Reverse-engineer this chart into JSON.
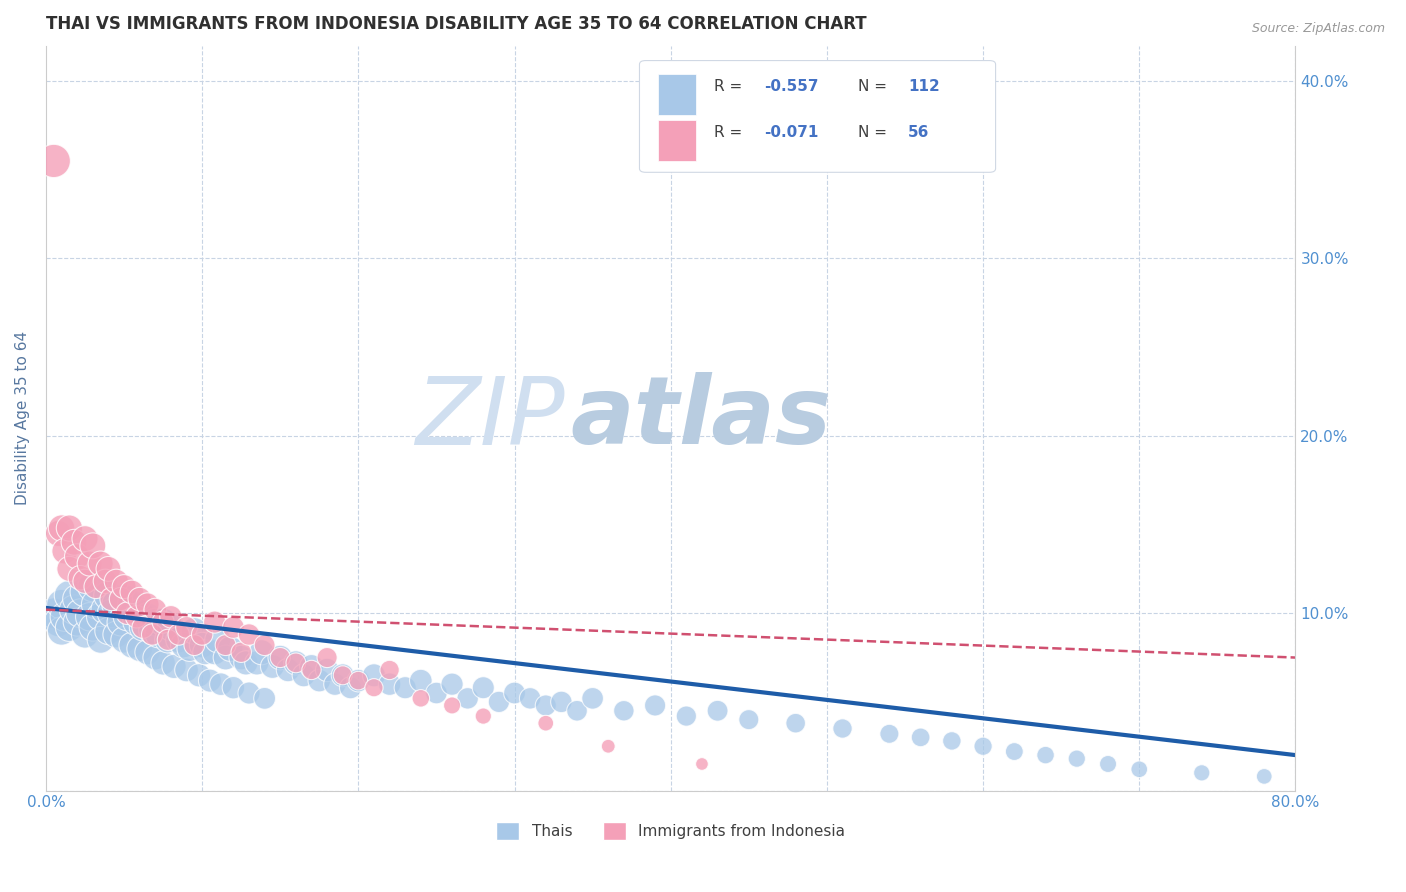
{
  "title": "THAI VS IMMIGRANTS FROM INDONESIA DISABILITY AGE 35 TO 64 CORRELATION CHART",
  "source": "Source: ZipAtlas.com",
  "ylabel": "Disability Age 35 to 64",
  "xlim": [
    0.0,
    0.8
  ],
  "ylim": [
    0.0,
    0.42
  ],
  "xticks": [
    0.0,
    0.1,
    0.2,
    0.3,
    0.4,
    0.5,
    0.6,
    0.7,
    0.8
  ],
  "xticklabels": [
    "0.0%",
    "",
    "",
    "",
    "",
    "",
    "",
    "",
    "80.0%"
  ],
  "yticks": [
    0.0,
    0.1,
    0.2,
    0.3,
    0.4
  ],
  "yticklabels_right": [
    "",
    "10.0%",
    "20.0%",
    "30.0%",
    "40.0%"
  ],
  "legend1_R": "-0.557",
  "legend1_N": "112",
  "legend2_R": "-0.071",
  "legend2_N": "56",
  "blue_color": "#a8c8e8",
  "pink_color": "#f4a0b8",
  "blue_line_color": "#1e5ca8",
  "pink_line_color": "#d05070",
  "grid_color": "#c8d4e4",
  "watermark_color": "#d0dff0",
  "title_color": "#303030",
  "axis_label_color": "#5878a0",
  "tick_color": "#5090d0",
  "thai_scatter_x": [
    0.005,
    0.008,
    0.01,
    0.01,
    0.012,
    0.015,
    0.015,
    0.018,
    0.02,
    0.02,
    0.022,
    0.025,
    0.025,
    0.028,
    0.03,
    0.03,
    0.032,
    0.035,
    0.035,
    0.038,
    0.04,
    0.04,
    0.042,
    0.045,
    0.045,
    0.048,
    0.05,
    0.05,
    0.052,
    0.055,
    0.055,
    0.058,
    0.06,
    0.06,
    0.062,
    0.065,
    0.065,
    0.068,
    0.07,
    0.07,
    0.072,
    0.075,
    0.075,
    0.078,
    0.08,
    0.082,
    0.085,
    0.088,
    0.09,
    0.092,
    0.095,
    0.098,
    0.1,
    0.102,
    0.105,
    0.108,
    0.11,
    0.112,
    0.115,
    0.118,
    0.12,
    0.125,
    0.128,
    0.13,
    0.135,
    0.138,
    0.14,
    0.145,
    0.15,
    0.155,
    0.16,
    0.165,
    0.17,
    0.175,
    0.18,
    0.185,
    0.19,
    0.195,
    0.2,
    0.21,
    0.22,
    0.23,
    0.24,
    0.25,
    0.26,
    0.27,
    0.28,
    0.29,
    0.3,
    0.31,
    0.32,
    0.33,
    0.34,
    0.35,
    0.37,
    0.39,
    0.41,
    0.43,
    0.45,
    0.48,
    0.51,
    0.54,
    0.56,
    0.58,
    0.6,
    0.62,
    0.64,
    0.66,
    0.68,
    0.7,
    0.74,
    0.78
  ],
  "thai_scatter_y": [
    0.1,
    0.095,
    0.105,
    0.09,
    0.098,
    0.11,
    0.092,
    0.102,
    0.108,
    0.095,
    0.1,
    0.112,
    0.088,
    0.098,
    0.115,
    0.092,
    0.105,
    0.098,
    0.085,
    0.102,
    0.11,
    0.09,
    0.1,
    0.105,
    0.088,
    0.095,
    0.108,
    0.085,
    0.098,
    0.105,
    0.082,
    0.095,
    0.1,
    0.08,
    0.092,
    0.098,
    0.078,
    0.09,
    0.095,
    0.075,
    0.088,
    0.095,
    0.072,
    0.085,
    0.092,
    0.07,
    0.085,
    0.082,
    0.068,
    0.08,
    0.09,
    0.065,
    0.082,
    0.078,
    0.062,
    0.078,
    0.085,
    0.06,
    0.075,
    0.08,
    0.058,
    0.075,
    0.072,
    0.055,
    0.072,
    0.078,
    0.052,
    0.07,
    0.075,
    0.068,
    0.072,
    0.065,
    0.07,
    0.062,
    0.068,
    0.06,
    0.065,
    0.058,
    0.062,
    0.065,
    0.06,
    0.058,
    0.062,
    0.055,
    0.06,
    0.052,
    0.058,
    0.05,
    0.055,
    0.052,
    0.048,
    0.05,
    0.045,
    0.052,
    0.045,
    0.048,
    0.042,
    0.045,
    0.04,
    0.038,
    0.035,
    0.032,
    0.03,
    0.028,
    0.025,
    0.022,
    0.02,
    0.018,
    0.015,
    0.012,
    0.01,
    0.008
  ],
  "thai_scatter_size": [
    220,
    200,
    210,
    190,
    200,
    215,
    185,
    205,
    200,
    185,
    195,
    210,
    175,
    190,
    215,
    178,
    200,
    188,
    170,
    195,
    205,
    175,
    192,
    198,
    168,
    182,
    200,
    165,
    185,
    195,
    158,
    178,
    190,
    155,
    172,
    185,
    150,
    170,
    180,
    145,
    168,
    182,
    140,
    162,
    175,
    138,
    160,
    155,
    132,
    152,
    168,
    128,
    155,
    148,
    125,
    148,
    160,
    120,
    145,
    152,
    118,
    142,
    138,
    115,
    138,
    148,
    112,
    135,
    142,
    130,
    138,
    125,
    132,
    120,
    128,
    118,
    124,
    115,
    120,
    125,
    118,
    115,
    120,
    110,
    116,
    108,
    114,
    106,
    112,
    108,
    104,
    108,
    100,
    110,
    98,
    105,
    96,
    102,
    94,
    90,
    88,
    85,
    82,
    80,
    78,
    75,
    72,
    70,
    68,
    65,
    62,
    58
  ],
  "indo_scatter_x": [
    0.005,
    0.008,
    0.01,
    0.012,
    0.015,
    0.015,
    0.018,
    0.02,
    0.022,
    0.025,
    0.025,
    0.028,
    0.03,
    0.032,
    0.035,
    0.038,
    0.04,
    0.042,
    0.045,
    0.048,
    0.05,
    0.052,
    0.055,
    0.058,
    0.06,
    0.062,
    0.065,
    0.068,
    0.07,
    0.075,
    0.078,
    0.08,
    0.085,
    0.09,
    0.095,
    0.1,
    0.108,
    0.115,
    0.12,
    0.125,
    0.13,
    0.14,
    0.15,
    0.16,
    0.17,
    0.18,
    0.19,
    0.2,
    0.21,
    0.22,
    0.24,
    0.26,
    0.28,
    0.32,
    0.36,
    0.42
  ],
  "indo_scatter_y": [
    0.355,
    0.145,
    0.148,
    0.135,
    0.148,
    0.125,
    0.14,
    0.132,
    0.12,
    0.142,
    0.118,
    0.128,
    0.138,
    0.115,
    0.128,
    0.118,
    0.125,
    0.108,
    0.118,
    0.108,
    0.115,
    0.1,
    0.112,
    0.098,
    0.108,
    0.092,
    0.105,
    0.088,
    0.102,
    0.095,
    0.085,
    0.098,
    0.088,
    0.092,
    0.082,
    0.088,
    0.095,
    0.082,
    0.092,
    0.078,
    0.088,
    0.082,
    0.075,
    0.072,
    0.068,
    0.075,
    0.065,
    0.062,
    0.058,
    0.068,
    0.052,
    0.048,
    0.042,
    0.038,
    0.025,
    0.015
  ],
  "indo_scatter_size": [
    260,
    160,
    165,
    155,
    162,
    148,
    158,
    152,
    142,
    160,
    138,
    148,
    158,
    135,
    148,
    138,
    145,
    128,
    138,
    128,
    135,
    120,
    132,
    118,
    128,
    112,
    125,
    108,
    122,
    115,
    105,
    118,
    108,
    112,
    102,
    108,
    115,
    102,
    112,
    98,
    108,
    102,
    95,
    92,
    88,
    95,
    85,
    82,
    78,
    88,
    72,
    68,
    62,
    58,
    45,
    38
  ],
  "blue_trend_x0": 0.0,
  "blue_trend_y0": 0.103,
  "blue_trend_x1": 0.8,
  "blue_trend_y1": 0.02,
  "pink_trend_x0": 0.0,
  "pink_trend_y0": 0.102,
  "pink_trend_x1": 0.8,
  "pink_trend_y1": 0.075
}
